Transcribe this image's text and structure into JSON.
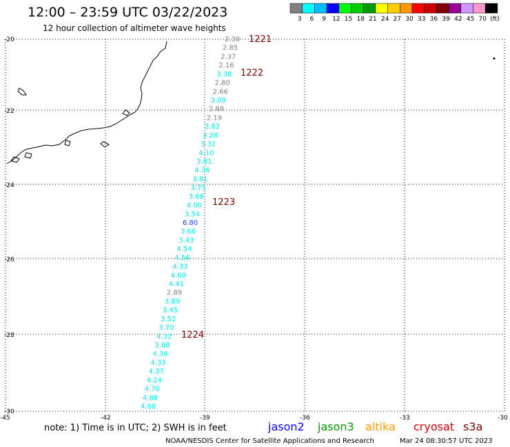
{
  "title": "12:00 – 23:59 UTC 03/22/2023",
  "subtitle": "12 hour collection of altimeter wave heights",
  "colorbar": {
    "colors": [
      "#808080",
      "#00ffff",
      "#00bfff",
      "#0000ff",
      "#00ff00",
      "#00cc00",
      "#009900",
      "#ffff00",
      "#ffcc00",
      "#ff9900",
      "#ff0000",
      "#cc0000",
      "#800000",
      "#990099",
      "#cc99ff",
      "#ff99cc",
      "#000000"
    ],
    "labels": [
      "3",
      "6",
      "9",
      "12",
      "15",
      "18",
      "21",
      "24",
      "27",
      "30",
      "33",
      "36",
      "39",
      "42",
      "45",
      "70",
      "(ft)"
    ]
  },
  "lat_labels": [
    "-20",
    "-22",
    "-24",
    "-26",
    "-28",
    "-30"
  ],
  "lon_labels": [
    "-45",
    "-42",
    "-39",
    "-36",
    "-33",
    "-30"
  ],
  "time_markers": [
    "1221",
    "1222",
    "1223",
    "1224"
  ],
  "swh_points": [
    {
      "v": "2.30",
      "c": "gray"
    },
    {
      "v": "2.85",
      "c": "gray"
    },
    {
      "v": "2.37",
      "c": "gray"
    },
    {
      "v": "2.16",
      "c": "gray"
    },
    {
      "v": "3.38",
      "c": "cyan"
    },
    {
      "v": "2.80",
      "c": "gray"
    },
    {
      "v": "2.66",
      "c": "gray"
    },
    {
      "v": "3.09",
      "c": "cyan"
    },
    {
      "v": "2.88",
      "c": "gray"
    },
    {
      "v": "2.19",
      "c": "gray"
    },
    {
      "v": "3.62",
      "c": "cyan"
    },
    {
      "v": "3.28",
      "c": "cyan"
    },
    {
      "v": "3.32",
      "c": "cyan"
    },
    {
      "v": "4.10",
      "c": "cyan"
    },
    {
      "v": "3.81",
      "c": "cyan"
    },
    {
      "v": "4.36",
      "c": "cyan"
    },
    {
      "v": "3.81",
      "c": "cyan"
    },
    {
      "v": "3.75",
      "c": "cyan"
    },
    {
      "v": "3.68",
      "c": "cyan"
    },
    {
      "v": "4.00",
      "c": "cyan"
    },
    {
      "v": "3.54",
      "c": "cyan"
    },
    {
      "v": "6.80",
      "c": "blue"
    },
    {
      "v": "3.66",
      "c": "cyan"
    },
    {
      "v": "3.43",
      "c": "cyan"
    },
    {
      "v": "4.54",
      "c": "cyan"
    },
    {
      "v": "4.56",
      "c": "cyan"
    },
    {
      "v": "4.33",
      "c": "cyan"
    },
    {
      "v": "4.60",
      "c": "cyan"
    },
    {
      "v": "4.41",
      "c": "cyan"
    },
    {
      "v": "2.89",
      "c": "gray"
    },
    {
      "v": "3.89",
      "c": "cyan"
    },
    {
      "v": "3.45",
      "c": "cyan"
    },
    {
      "v": "3.52",
      "c": "cyan"
    },
    {
      "v": "3.70",
      "c": "cyan"
    },
    {
      "v": "4.32",
      "c": "cyan"
    },
    {
      "v": "3.88",
      "c": "cyan"
    },
    {
      "v": "4.36",
      "c": "cyan"
    },
    {
      "v": "4.33",
      "c": "cyan"
    },
    {
      "v": "4.37",
      "c": "cyan"
    },
    {
      "v": "4.24",
      "c": "cyan"
    },
    {
      "v": "4.70",
      "c": "cyan"
    },
    {
      "v": "4.88",
      "c": "cyan"
    },
    {
      "v": "4.68",
      "c": "cyan"
    }
  ],
  "note": "note:  1) Time is in UTC;  2) SWH is in feet",
  "satellites": [
    {
      "name": "jason2",
      "color": "#0000ff"
    },
    {
      "name": "jason3",
      "color": "#009900"
    },
    {
      "name": "altika",
      "color": "#ff9900"
    },
    {
      "name": "cryosat",
      "color": "#cc0000"
    },
    {
      "name": "s3a",
      "color": "#800000"
    }
  ],
  "credit": "NOAA/NESDIS Center for Satellite Applications and Research",
  "timestamp": "Mar 24 08:30:57 UTC 2023",
  "point_colors": {
    "gray": "#808080",
    "cyan": "#00e5ee",
    "blue": "#1e3cff"
  }
}
